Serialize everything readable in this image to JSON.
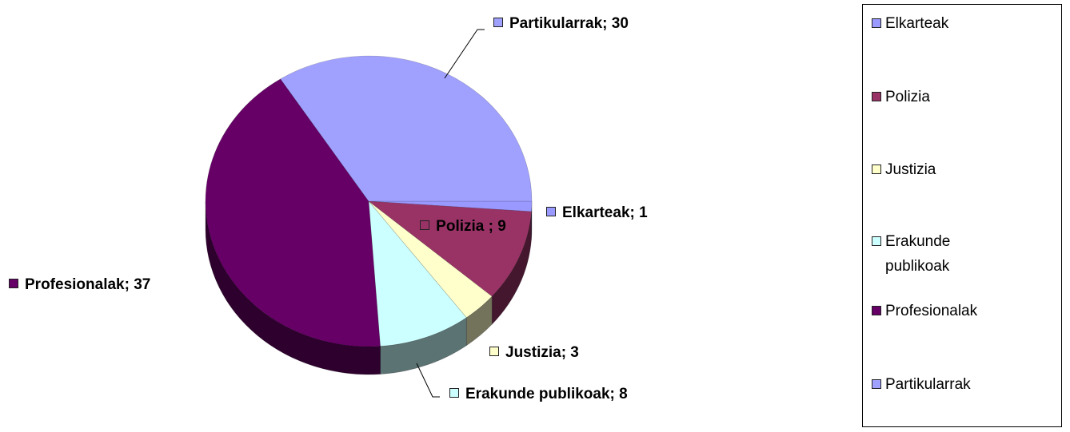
{
  "chart_data": {
    "type": "pie",
    "categories": [
      "Elkarteak",
      "Polizia",
      "Justizia",
      "Erakunde publikoak",
      "Profesionalak",
      "Partikularrak"
    ],
    "values": [
      1,
      9,
      3,
      8,
      37,
      30
    ],
    "value_labels": [
      "Elkarteak; 1",
      "Polizia ; 9",
      "Justizia; 3",
      "Erakunde publikoak; 8",
      "Profesionalak; 37",
      "Partikularrak; 30"
    ],
    "colors": [
      "#9999ff",
      "#993366",
      "#ffffcc",
      "#ccffff",
      "#660066",
      "#a0a0ff"
    ],
    "legend": "right"
  }
}
